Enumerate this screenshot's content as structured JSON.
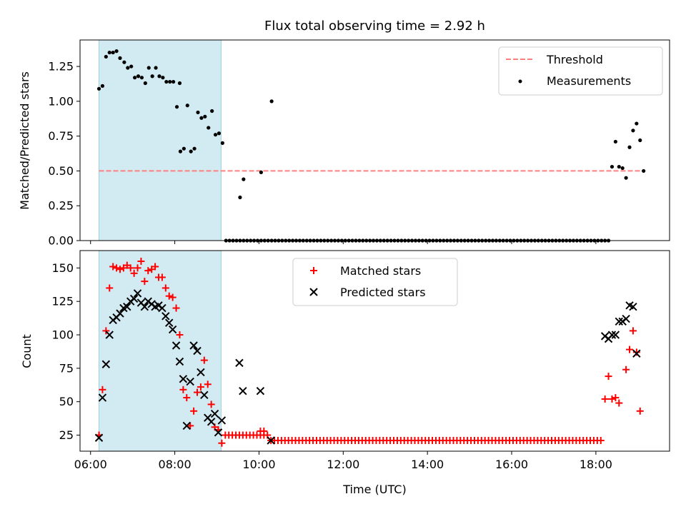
{
  "chart_data": [
    {
      "type": "scatter",
      "title": "Flux total observing time = 2.92 h",
      "xlabel": "",
      "ylabel": "Matched/Predicted stars",
      "xlim": [
        "05:45",
        "19:45"
      ],
      "ylim": [
        0,
        1.44
      ],
      "yticks": [
        "0.00",
        "0.25",
        "0.50",
        "0.75",
        "1.00",
        "1.25"
      ],
      "highlight_span": {
        "from": "06:12",
        "to": "09:06",
        "color": "#add8e6"
      },
      "legend_position": "upper right",
      "series": [
        {
          "name": "Threshold",
          "style": "dashed-line",
          "color": "#ff7f7f",
          "points": [
            [
              "06:12",
              0.5
            ],
            [
              "19:03",
              0.5
            ]
          ]
        },
        {
          "name": "Measurements",
          "style": "dot",
          "color": "#000000",
          "points": [
            [
              "06:12",
              1.09
            ],
            [
              "06:17",
              1.11
            ],
            [
              "06:22",
              1.32
            ],
            [
              "06:27",
              1.35
            ],
            [
              "06:32",
              1.35
            ],
            [
              "06:37",
              1.36
            ],
            [
              "06:42",
              1.31
            ],
            [
              "06:48",
              1.28
            ],
            [
              "06:53",
              1.24
            ],
            [
              "06:58",
              1.25
            ],
            [
              "07:03",
              1.17
            ],
            [
              "07:08",
              1.18
            ],
            [
              "07:13",
              1.17
            ],
            [
              "07:18",
              1.13
            ],
            [
              "07:23",
              1.24
            ],
            [
              "07:28",
              1.18
            ],
            [
              "07:33",
              1.24
            ],
            [
              "07:38",
              1.18
            ],
            [
              "07:43",
              1.17
            ],
            [
              "07:48",
              1.14
            ],
            [
              "07:53",
              1.14
            ],
            [
              "07:58",
              1.14
            ],
            [
              "08:03",
              0.96
            ],
            [
              "08:07",
              1.13
            ],
            [
              "08:08",
              0.64
            ],
            [
              "08:13",
              0.66
            ],
            [
              "08:18",
              0.97
            ],
            [
              "08:23",
              0.64
            ],
            [
              "08:28",
              0.66
            ],
            [
              "08:33",
              0.92
            ],
            [
              "08:38",
              0.88
            ],
            [
              "08:43",
              0.89
            ],
            [
              "08:48",
              0.81
            ],
            [
              "08:53",
              0.93
            ],
            [
              "08:58",
              0.76
            ],
            [
              "09:03",
              0.77
            ],
            [
              "09:08",
              0.7
            ],
            [
              "09:33",
              0.31
            ],
            [
              "09:38",
              0.44
            ],
            [
              "10:03",
              0.49
            ],
            [
              "10:18",
              1.0
            ],
            [
              "18:23",
              0.53
            ],
            [
              "18:28",
              0.71
            ],
            [
              "18:33",
              0.53
            ],
            [
              "18:38",
              0.52
            ],
            [
              "18:43",
              0.45
            ],
            [
              "18:48",
              0.67
            ],
            [
              "18:53",
              0.79
            ],
            [
              "18:58",
              0.84
            ],
            [
              "19:03",
              0.72
            ],
            [
              "19:08",
              0.5
            ]
          ],
          "zero_run": {
            "from": "09:13",
            "to": "18:18",
            "step_minutes": 5,
            "value": 0
          }
        }
      ]
    },
    {
      "type": "scatter",
      "title": "",
      "xlabel": "Time (UTC)",
      "ylabel": "Count",
      "xlim": [
        "05:45",
        "19:45"
      ],
      "ylim": [
        13,
        163
      ],
      "yticks": [
        "25",
        "50",
        "75",
        "100",
        "125",
        "150"
      ],
      "xticks": [
        "06:00",
        "08:00",
        "10:00",
        "12:00",
        "14:00",
        "16:00",
        "18:00"
      ],
      "highlight_span": {
        "from": "06:12",
        "to": "09:06",
        "color": "#add8e6"
      },
      "legend_position": "upper center",
      "series": [
        {
          "name": "Matched stars",
          "style": "plus",
          "color": "#ff0000",
          "points": [
            [
              "06:12",
              25
            ],
            [
              "06:17",
              59
            ],
            [
              "06:22",
              103
            ],
            [
              "06:27",
              135
            ],
            [
              "06:32",
              151
            ],
            [
              "06:37",
              150
            ],
            [
              "06:42",
              149
            ],
            [
              "06:47",
              150
            ],
            [
              "06:52",
              152
            ],
            [
              "06:57",
              150
            ],
            [
              "07:02",
              146
            ],
            [
              "07:07",
              150
            ],
            [
              "07:12",
              155
            ],
            [
              "07:17",
              140
            ],
            [
              "07:22",
              148
            ],
            [
              "07:27",
              149
            ],
            [
              "07:32",
              151
            ],
            [
              "07:37",
              143
            ],
            [
              "07:42",
              143
            ],
            [
              "07:47",
              135
            ],
            [
              "07:52",
              129
            ],
            [
              "07:57",
              128
            ],
            [
              "08:02",
              120
            ],
            [
              "08:07",
              100
            ],
            [
              "08:12",
              59
            ],
            [
              "08:17",
              53
            ],
            [
              "08:22",
              32
            ],
            [
              "08:27",
              43
            ],
            [
              "08:32",
              57
            ],
            [
              "08:37",
              61
            ],
            [
              "08:42",
              81
            ],
            [
              "08:47",
              63
            ],
            [
              "08:52",
              48
            ],
            [
              "08:57",
              31
            ],
            [
              "09:02",
              29
            ],
            [
              "09:07",
              19
            ],
            [
              "10:02",
              28
            ],
            [
              "10:07",
              28
            ],
            [
              "10:17",
              21
            ],
            [
              "18:13",
              52
            ],
            [
              "18:18",
              69
            ],
            [
              "18:23",
              52
            ],
            [
              "18:28",
              53
            ],
            [
              "18:33",
              49
            ],
            [
              "18:43",
              74
            ],
            [
              "18:48",
              89
            ],
            [
              "18:53",
              103
            ],
            [
              "18:58",
              87
            ],
            [
              "19:03",
              43
            ]
          ],
          "runs": [
            {
              "from": "09:12",
              "to": "10:12",
              "step_minutes": 5,
              "value": 25
            },
            {
              "from": "10:22",
              "to": "18:07",
              "step_minutes": 5,
              "value": 21
            }
          ]
        },
        {
          "name": "Predicted stars",
          "style": "x",
          "color": "#000000",
          "points": [
            [
              "06:12",
              23
            ],
            [
              "06:17",
              53
            ],
            [
              "06:22",
              78
            ],
            [
              "06:27",
              100
            ],
            [
              "06:32",
              111
            ],
            [
              "06:37",
              113
            ],
            [
              "06:42",
              116
            ],
            [
              "06:47",
              120
            ],
            [
              "06:52",
              121
            ],
            [
              "06:57",
              125
            ],
            [
              "07:02",
              127
            ],
            [
              "07:07",
              131
            ],
            [
              "07:12",
              124
            ],
            [
              "07:17",
              121
            ],
            [
              "07:22",
              125
            ],
            [
              "07:27",
              123
            ],
            [
              "07:32",
              121
            ],
            [
              "07:37",
              122
            ],
            [
              "07:42",
              120
            ],
            [
              "07:47",
              114
            ],
            [
              "07:52",
              109
            ],
            [
              "07:57",
              104
            ],
            [
              "08:02",
              92
            ],
            [
              "08:07",
              80
            ],
            [
              "08:12",
              67
            ],
            [
              "08:17",
              32
            ],
            [
              "08:22",
              65
            ],
            [
              "08:27",
              92
            ],
            [
              "08:32",
              88
            ],
            [
              "08:37",
              72
            ],
            [
              "08:42",
              55
            ],
            [
              "08:47",
              38
            ],
            [
              "08:52",
              35
            ],
            [
              "08:57",
              41
            ],
            [
              "09:02",
              27
            ],
            [
              "09:07",
              36
            ],
            [
              "09:32",
              79
            ],
            [
              "09:37",
              58
            ],
            [
              "10:02",
              58
            ],
            [
              "10:17",
              21
            ],
            [
              "18:13",
              99
            ],
            [
              "18:18",
              97
            ],
            [
              "18:23",
              100
            ],
            [
              "18:28",
              100
            ],
            [
              "18:33",
              110
            ],
            [
              "18:38",
              110
            ],
            [
              "18:43",
              112
            ],
            [
              "18:48",
              122
            ],
            [
              "18:53",
              121
            ],
            [
              "18:58",
              86
            ]
          ]
        }
      ]
    }
  ]
}
